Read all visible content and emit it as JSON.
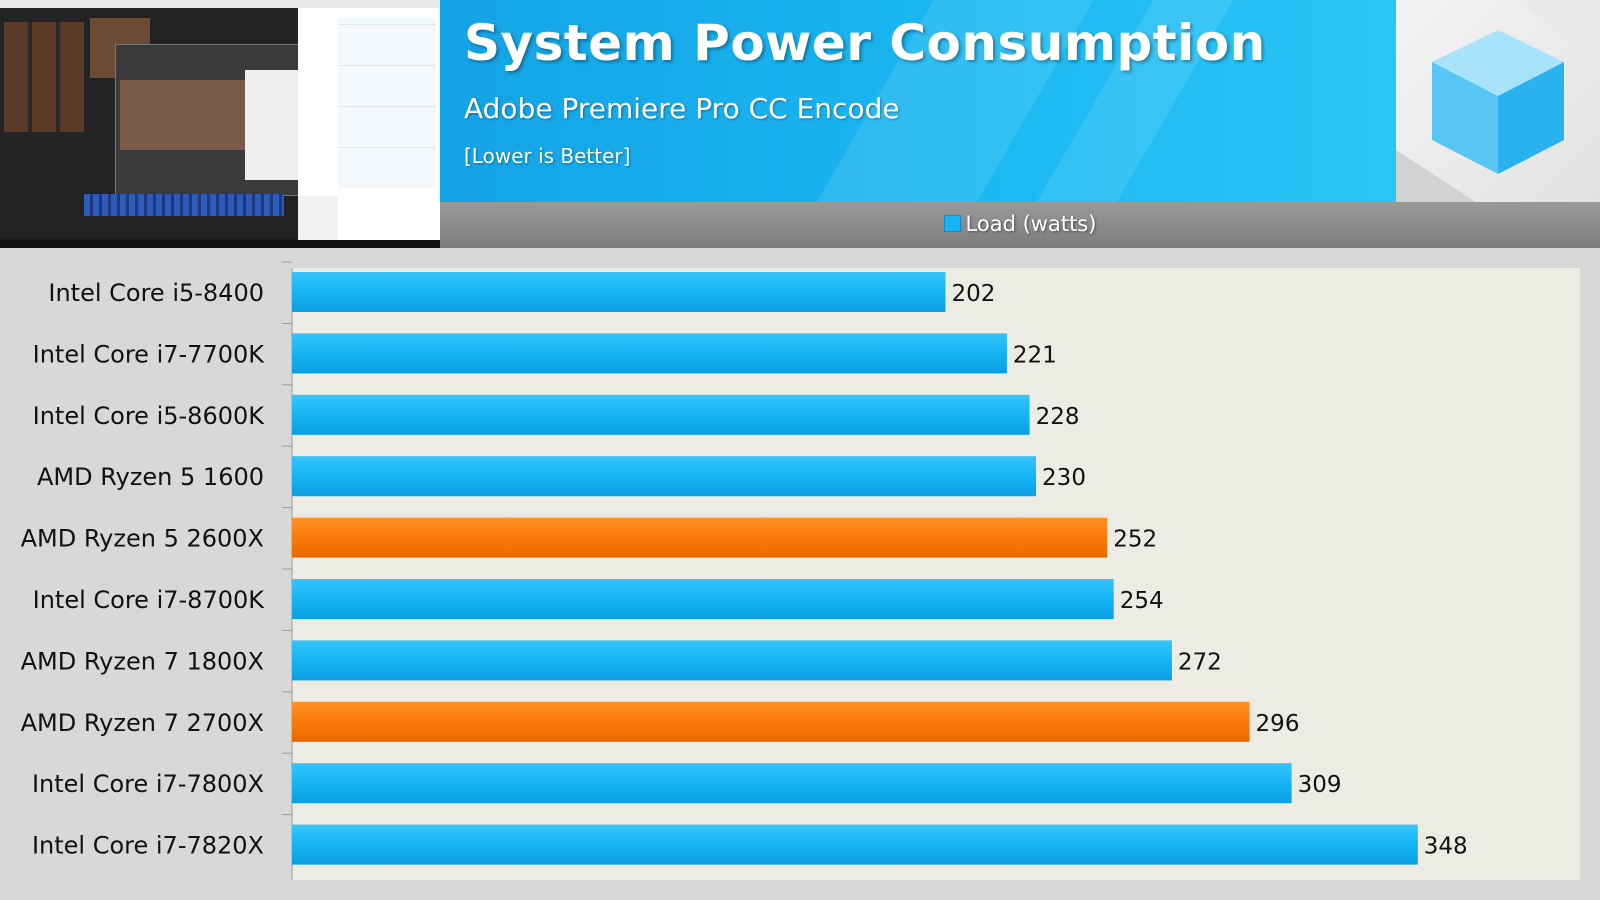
{
  "header": {
    "title": "System Power Consumption",
    "subtitle": "Adobe Premiere Pro CC Encode",
    "note": "[Lower is Better]"
  },
  "legend": {
    "label": "Load (watts)"
  },
  "colors": {
    "intel": "#16b4f4",
    "amd": "#fa7a0a"
  },
  "chart_data": {
    "type": "bar",
    "orientation": "horizontal",
    "title": "System Power Consumption",
    "subtitle": "Adobe Premiere Pro CC Encode",
    "note": "[Lower is Better]",
    "xlabel": "",
    "ylabel": "",
    "xlim": [
      0,
      360
    ],
    "grid": false,
    "legend": [
      "Load (watts)"
    ],
    "categories": [
      "Intel Core i5-8400",
      "Intel Core i7-7700K",
      "Intel Core i5-8600K",
      "AMD Ryzen 5 1600",
      "AMD Ryzen 5 2600X",
      "Intel Core i7-8700K",
      "AMD Ryzen 7 1800X",
      "AMD Ryzen 7 2700X",
      "Intel Core i7-7800X",
      "Intel Core i7-7820X"
    ],
    "series": [
      {
        "name": "Load (watts)",
        "values": [
          202,
          221,
          228,
          230,
          252,
          254,
          272,
          296,
          309,
          348
        ],
        "highlight": [
          false,
          false,
          false,
          false,
          true,
          false,
          false,
          true,
          false,
          false
        ]
      }
    ]
  }
}
